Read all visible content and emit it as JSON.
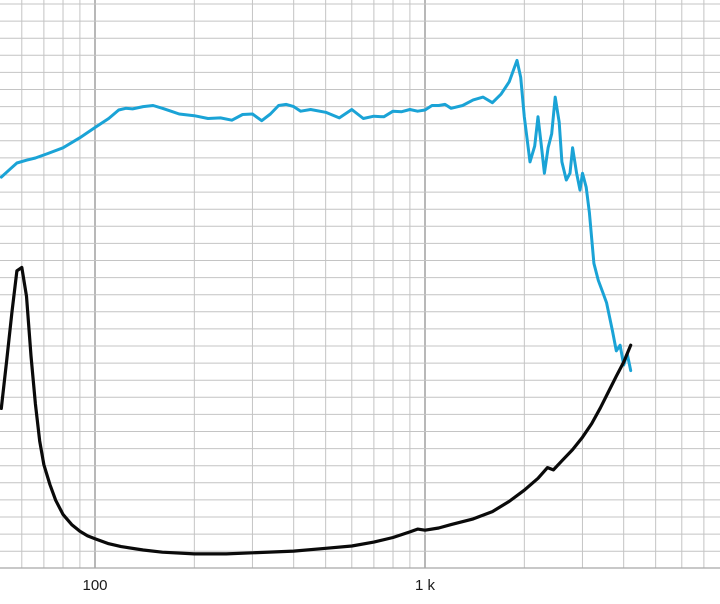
{
  "chart_data": {
    "type": "line",
    "title": "",
    "xlabel": "",
    "ylabel": "",
    "x_scale": "log",
    "xlim": [
      52,
      4200
    ],
    "y_range_relative": [
      0,
      1
    ],
    "grid": true,
    "x_tick_labels": [
      {
        "value": 100,
        "label": "100"
      },
      {
        "value": 1000,
        "label": "1 k"
      }
    ],
    "series": [
      {
        "color": "#1aa3d6",
        "x": [
          52,
          55,
          58,
          62,
          66,
          72,
          80,
          90,
          100,
          110,
          118,
          124,
          130,
          140,
          150,
          160,
          170,
          180,
          200,
          220,
          240,
          260,
          280,
          300,
          320,
          340,
          360,
          380,
          400,
          420,
          450,
          500,
          550,
          600,
          650,
          700,
          750,
          800,
          850,
          900,
          950,
          1000,
          1050,
          1100,
          1150,
          1200,
          1300,
          1400,
          1500,
          1600,
          1700,
          1800,
          1900,
          1950,
          2000,
          2080,
          2150,
          2200,
          2260,
          2300,
          2360,
          2420,
          2480,
          2550,
          2600,
          2680,
          2750,
          2800,
          2880,
          2950,
          3000,
          3080,
          3150,
          3250,
          3350,
          3450,
          3550,
          3700,
          3800,
          3900,
          4000,
          4100,
          4200
        ],
        "y": [
          0.693,
          0.706,
          0.718,
          0.723,
          0.727,
          0.735,
          0.745,
          0.763,
          0.781,
          0.797,
          0.812,
          0.815,
          0.814,
          0.818,
          0.82,
          0.815,
          0.81,
          0.805,
          0.802,
          0.797,
          0.798,
          0.794,
          0.804,
          0.805,
          0.793,
          0.805,
          0.82,
          0.822,
          0.818,
          0.81,
          0.813,
          0.808,
          0.798,
          0.813,
          0.797,
          0.801,
          0.8,
          0.81,
          0.809,
          0.813,
          0.81,
          0.812,
          0.82,
          0.82,
          0.822,
          0.815,
          0.82,
          0.83,
          0.835,
          0.825,
          0.84,
          0.862,
          0.9,
          0.87,
          0.8,
          0.72,
          0.748,
          0.8,
          0.74,
          0.7,
          0.745,
          0.77,
          0.835,
          0.79,
          0.72,
          0.688,
          0.7,
          0.745,
          0.7,
          0.67,
          0.7,
          0.675,
          0.63,
          0.54,
          0.51,
          0.49,
          0.47,
          0.42,
          0.385,
          0.395,
          0.36,
          0.38,
          0.35
        ]
      },
      {
        "color": "#0a0a0a",
        "x": [
          52,
          54,
          56,
          58,
          60,
          62,
          64,
          66,
          68,
          70,
          73,
          76,
          80,
          85,
          90,
          95,
          100,
          110,
          120,
          140,
          160,
          200,
          250,
          300,
          400,
          500,
          600,
          700,
          800,
          900,
          950,
          1000,
          1100,
          1200,
          1400,
          1600,
          1800,
          2000,
          2200,
          2350,
          2450,
          2600,
          2800,
          3000,
          3200,
          3400,
          3600,
          3800,
          4000,
          4200
        ],
        "y": [
          0.283,
          0.368,
          0.453,
          0.527,
          0.533,
          0.482,
          0.376,
          0.291,
          0.225,
          0.183,
          0.148,
          0.12,
          0.095,
          0.077,
          0.065,
          0.057,
          0.052,
          0.043,
          0.038,
          0.032,
          0.028,
          0.025,
          0.025,
          0.027,
          0.03,
          0.035,
          0.039,
          0.046,
          0.054,
          0.064,
          0.069,
          0.067,
          0.071,
          0.077,
          0.087,
          0.1,
          0.118,
          0.138,
          0.159,
          0.178,
          0.174,
          0.19,
          0.21,
          0.232,
          0.256,
          0.284,
          0.313,
          0.34,
          0.365,
          0.395
        ]
      }
    ]
  }
}
